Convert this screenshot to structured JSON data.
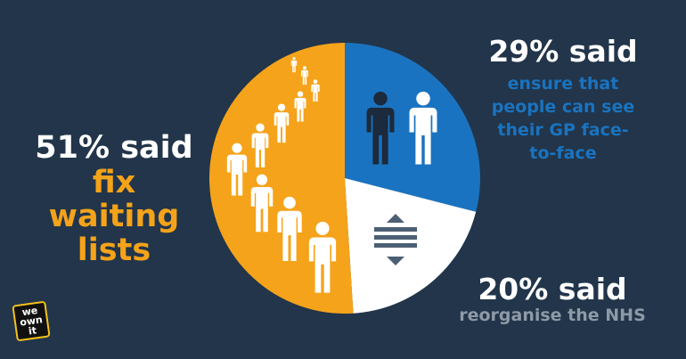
{
  "chart_data": {
    "type": "pie",
    "categories": [
      "ensure that people can see their GP face-to-face",
      "reorganise the NHS",
      "fix waiting lists"
    ],
    "values": [
      29,
      20,
      51
    ],
    "value_labels": [
      "29% said",
      "20% said",
      "51% said"
    ],
    "colors": [
      "#1a73c0",
      "#ffffff",
      "#f5a31a"
    ],
    "label_colors": [
      "#1a73c0",
      "#8e9aa6",
      "#f5a31a"
    ]
  },
  "logo": [
    "we",
    "own",
    "it"
  ]
}
